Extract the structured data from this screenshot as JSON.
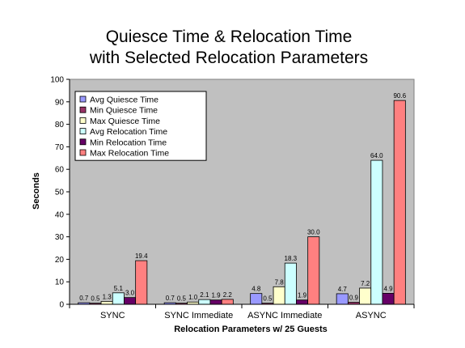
{
  "chart_data": {
    "type": "bar",
    "title": [
      "Quiesce Time & Relocation Time",
      "with Selected Relocation Parameters"
    ],
    "xlabel": "Relocation Parameters w/ 25 Guests",
    "ylabel": "Seconds",
    "ylim": [
      0,
      100
    ],
    "yticks": [
      0,
      10,
      20,
      30,
      40,
      50,
      60,
      70,
      80,
      90,
      100
    ],
    "grid": false,
    "plot_background": "#c0c0c0",
    "legend_position": "top-left",
    "categories": [
      "SYNC",
      "SYNC Immediate",
      "ASYNC Immediate",
      "ASYNC"
    ],
    "series": [
      {
        "name": "Avg Quiesce Time",
        "color": "#9999ff",
        "values": [
          0.7,
          0.7,
          4.8,
          4.7
        ]
      },
      {
        "name": "Min Quiesce Time",
        "color": "#993366",
        "values": [
          0.5,
          0.5,
          0.5,
          0.9
        ]
      },
      {
        "name": "Max Quiesce Time",
        "color": "#ffffcc",
        "values": [
          1.3,
          1.0,
          7.8,
          7.2
        ]
      },
      {
        "name": "Avg Relocation Time",
        "color": "#ccffff",
        "values": [
          5.1,
          2.1,
          18.3,
          64.0
        ]
      },
      {
        "name": "Min Relocation Time",
        "color": "#660066",
        "values": [
          3.0,
          1.9,
          1.9,
          4.9
        ]
      },
      {
        "name": "Max Relocation Time",
        "color": "#ff8080",
        "values": [
          19.4,
          2.2,
          30.0,
          90.6
        ]
      }
    ]
  }
}
